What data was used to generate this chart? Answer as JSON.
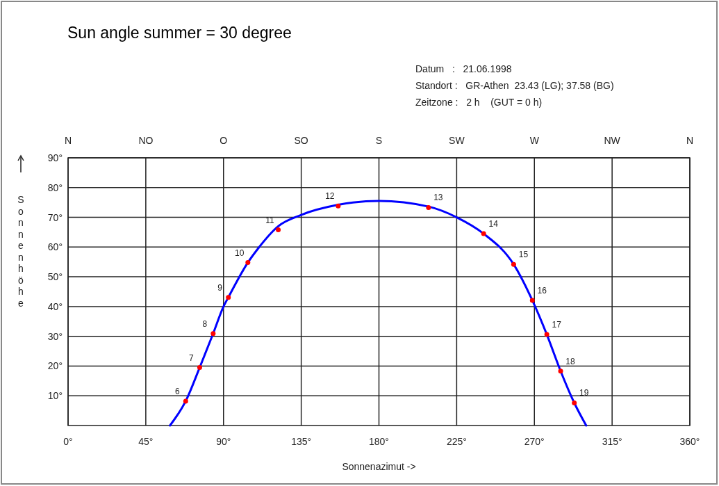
{
  "chart_data": {
    "type": "line",
    "title": "Sun angle summer = 30 degree",
    "annotations": [
      "Datum   :   21.06.1998",
      "Standort :   GR-Athen  23.43 (LG); 37.58 (BG)",
      "Zeitzone :   2 h    (GUT = 0 h)",
      "N",
      "NO",
      "O",
      "SO",
      "S",
      "SW",
      "W",
      "NW",
      "N",
      {
        "text": "6",
        "x": 68.1,
        "y": 8.2
      },
      {
        "text": "7",
        "x": 76.2,
        "y": 19.5
      },
      {
        "text": "8",
        "x": 84,
        "y": 30.9
      },
      {
        "text": "9",
        "x": 92.8,
        "y": 43.1
      },
      {
        "text": "10",
        "x": 104.1,
        "y": 54.8
      },
      {
        "text": "11",
        "x": 121.7,
        "y": 65.8
      },
      {
        "text": "12",
        "x": 156.4,
        "y": 73.8
      },
      {
        "text": "13",
        "x": 208.7,
        "y": 73.3
      },
      {
        "text": "14",
        "x": 240.6,
        "y": 64.5
      },
      {
        "text": "15",
        "x": 258,
        "y": 54.2
      },
      {
        "text": "16",
        "x": 268.8,
        "y": 42.1
      },
      {
        "text": "17",
        "x": 277.2,
        "y": 30.6
      },
      {
        "text": "18",
        "x": 285.2,
        "y": 18.3
      },
      {
        "text": "19",
        "x": 293.1,
        "y": 7.6
      }
    ],
    "xlabel": "Sonnenazimut ->",
    "ylabel": "Sonnenhöhe",
    "series": [
      {
        "color": "#0000ff",
        "line_style": "solid",
        "x": [
          59,
          68.1,
          76.2,
          84,
          90,
          92.8,
          104.1,
          110,
          121.7,
          135,
          156.4,
          180,
          208.7,
          225,
          240.6,
          258,
          268.8,
          277.2,
          285.2,
          293.1,
          300
        ],
        "values": [
          0,
          8.2,
          19.5,
          30.9,
          40,
          43.1,
          54.8,
          59.5,
          67,
          70.8,
          74.2,
          75.5,
          73.6,
          70,
          64.5,
          54.2,
          42.1,
          30.6,
          18.3,
          7.6,
          0
        ]
      },
      {
        "type": "scatter",
        "color": "#ff0000",
        "marker": "circle",
        "x": [
          68.1,
          76.2,
          84,
          92.8,
          104.1,
          121.7,
          156.4,
          208.7,
          240.6,
          258,
          268.8,
          277.2,
          285.2,
          293.1
        ],
        "values": [
          8.2,
          19.5,
          30.9,
          43.1,
          54.8,
          65.8,
          73.8,
          73.3,
          64.5,
          54.2,
          42.1,
          30.6,
          18.3,
          7.6
        ]
      }
    ],
    "xlim": [
      0,
      360
    ],
    "xticks": [
      {
        "value": 0,
        "label": "0°"
      },
      {
        "value": 45,
        "label": "45°"
      },
      {
        "value": 90,
        "label": "90°"
      },
      {
        "value": 135,
        "label": "135°"
      },
      {
        "value": 180,
        "label": "180°"
      },
      {
        "value": 225,
        "label": "225°"
      },
      {
        "value": 270,
        "label": "270°"
      },
      {
        "value": 315,
        "label": "315°"
      },
      {
        "value": 360,
        "label": "360°"
      }
    ],
    "ylim": [
      0,
      90
    ],
    "yticks": [
      {
        "value": 10,
        "label": "10°"
      },
      {
        "value": 20,
        "label": "20°"
      },
      {
        "value": 30,
        "label": "30°"
      },
      {
        "value": 40,
        "label": "40°"
      },
      {
        "value": 50,
        "label": "50°"
      },
      {
        "value": 60,
        "label": "60°"
      },
      {
        "value": 70,
        "label": "70°"
      },
      {
        "value": 80,
        "label": "80°"
      },
      {
        "value": 90,
        "label": "90°"
      }
    ],
    "grid": true
  }
}
